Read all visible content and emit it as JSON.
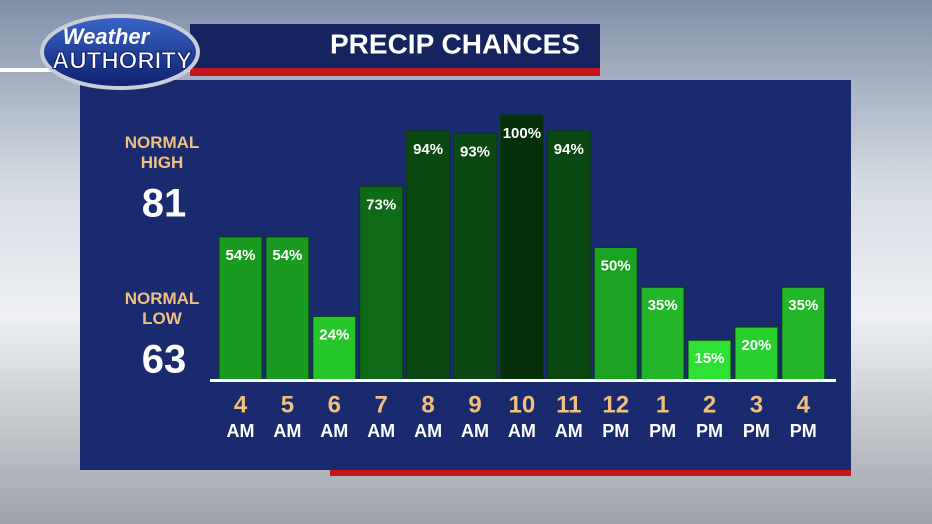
{
  "logo": {
    "line1": "Weather",
    "line2": "AUTHORITY"
  },
  "normals": {
    "high_label": "NORMAL\nHIGH",
    "high": 81,
    "low_label": "NORMAL\nLOW",
    "low": 63
  },
  "chart_data": {
    "type": "bar",
    "title": "PRECIP CHANCES",
    "categories": [
      "4",
      "5",
      "6",
      "7",
      "8",
      "9",
      "10",
      "11",
      "12",
      "1",
      "2",
      "3",
      "4"
    ],
    "periods": [
      "AM",
      "AM",
      "AM",
      "AM",
      "AM",
      "AM",
      "AM",
      "AM",
      "PM",
      "PM",
      "PM",
      "PM",
      "PM"
    ],
    "values": [
      54,
      54,
      24,
      73,
      94,
      93,
      100,
      94,
      50,
      35,
      15,
      20,
      35
    ],
    "value_labels": [
      "54%",
      "54%",
      "24%",
      "73%",
      "94%",
      "93%",
      "100%",
      "94%",
      "50%",
      "35%",
      "15%",
      "20%",
      "35%"
    ],
    "colors": [
      "#1b9a22",
      "#1b9a22",
      "#25c62a",
      "#0f6a17",
      "#0a4811",
      "#0a4a12",
      "#06300b",
      "#0a4811",
      "#1ca223",
      "#22b628",
      "#2de234",
      "#28d02e",
      "#22b628"
    ],
    "ylim": [
      0,
      100
    ]
  }
}
